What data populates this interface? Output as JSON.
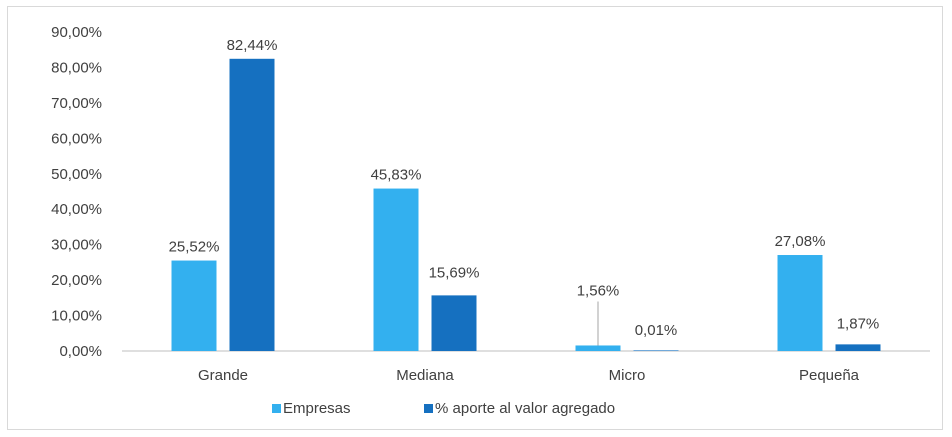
{
  "chart_data": {
    "type": "bar",
    "categories": [
      "Grande",
      "Mediana",
      "Micro",
      "Pequeña"
    ],
    "series": [
      {
        "name": "Empresas",
        "color": "#33b0ef",
        "values": [
          25.52,
          45.83,
          1.56,
          27.08
        ],
        "labels": [
          "25,52%",
          "45,83%",
          "1,56%",
          "27,08%"
        ]
      },
      {
        "name": "% aporte al valor agregado",
        "color": "#1570c0",
        "values": [
          82.44,
          15.69,
          0.01,
          1.87
        ],
        "labels": [
          "82,44%",
          "15,69%",
          "0,01%",
          "1,87%"
        ]
      }
    ],
    "yticks": [
      0,
      10,
      20,
      30,
      40,
      50,
      60,
      70,
      80,
      90
    ],
    "ytick_labels": [
      "0,00%",
      "10,00%",
      "20,00%",
      "30,00%",
      "40,00%",
      "50,00%",
      "60,00%",
      "70,00%",
      "80,00%",
      "90,00%"
    ],
    "ylim": [
      0,
      90
    ],
    "legend_position": "bottom",
    "grid": false
  }
}
